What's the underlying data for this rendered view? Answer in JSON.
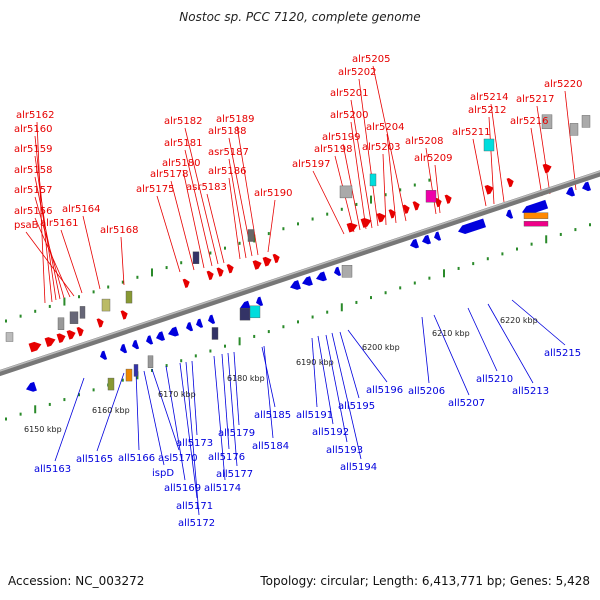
{
  "title": "Nostoc sp. PCC 7120, complete genome",
  "footer": {
    "accession": "Accession: NC_003272",
    "summary": "Topology: circular; Length: 6,413,771 bp; Genes: 5,428"
  },
  "colors": {
    "forward": "#e60000",
    "reverse": "#0000dd",
    "backbone": "#777777",
    "tick": "#2a8a2a"
  },
  "kbp_labels": [
    "6150 kbp",
    "6160 kbp",
    "6170 kbp",
    "6180 kbp",
    "6190 kbp",
    "6200 kbp",
    "6210 kbp",
    "6220 kbp"
  ],
  "genes_top": [
    "alr5162",
    "alr5160",
    "alr5159",
    "alr5158",
    "alr5157",
    "alr5156",
    "psaB",
    "alr5161",
    "alr5164",
    "alr5168",
    "alr5175",
    "alr5178",
    "alr5180",
    "alr5181",
    "alr5182",
    "asr5183",
    "alr5186",
    "asr5187",
    "alr5188",
    "alr5189",
    "alr5190",
    "alr5197",
    "alr5198",
    "alr5199",
    "alr5200",
    "alr5201",
    "alr5202",
    "alr5205",
    "alr5204",
    "alr5203",
    "alr5208",
    "alr5209",
    "alr5211",
    "alr5212",
    "alr5214",
    "alr5216",
    "alr5217",
    "alr5220"
  ],
  "genes_bottom": [
    "all5163",
    "all5165",
    "all5166",
    "ispD",
    "asl5170",
    "all5169",
    "all5171",
    "all5172",
    "all5173",
    "all5174",
    "all5176",
    "all5177",
    "all5179",
    "all5184",
    "all5185",
    "all5191",
    "all5192",
    "all5193",
    "all5194",
    "all5195",
    "all5196",
    "all5206",
    "all5207",
    "all5210",
    "all5213",
    "all5215"
  ]
}
